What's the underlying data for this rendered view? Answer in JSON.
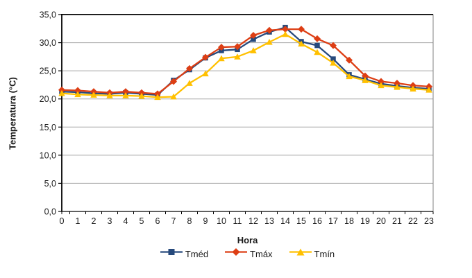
{
  "chart_data": {
    "type": "line",
    "title": "",
    "xlabel": "Hora",
    "ylabel": "Temperatura (°C)",
    "categories": [
      "0",
      "1",
      "2",
      "3",
      "4",
      "5",
      "6",
      "7",
      "8",
      "9",
      "10",
      "11",
      "12",
      "13",
      "14",
      "15",
      "16",
      "17",
      "18",
      "19",
      "20",
      "21",
      "22",
      "23"
    ],
    "ylim": [
      0,
      35
    ],
    "ytick_step": 5,
    "ytick_labels": [
      "0,0",
      "5,0",
      "10,0",
      "15,0",
      "20,0",
      "25,0",
      "30,0",
      "35,0"
    ],
    "grid": true,
    "legend_position": "bottom",
    "series": [
      {
        "name": "Tméd",
        "marker": "square",
        "color": "#26497C",
        "values": [
          21.3,
          21.2,
          21.0,
          20.9,
          21.1,
          20.9,
          20.7,
          23.3,
          25.2,
          27.3,
          28.6,
          28.8,
          30.6,
          31.9,
          32.7,
          30.2,
          29.5,
          27.1,
          24.3,
          23.5,
          22.7,
          22.3,
          22.0,
          21.8
        ]
      },
      {
        "name": "Tmáx",
        "marker": "diamond",
        "color": "#DD3E14",
        "values": [
          21.6,
          21.5,
          21.3,
          21.1,
          21.3,
          21.1,
          20.9,
          23.1,
          25.4,
          27.4,
          29.2,
          29.3,
          31.3,
          32.2,
          32.4,
          32.4,
          30.7,
          29.5,
          26.9,
          24.1,
          23.1,
          22.8,
          22.4,
          22.2
        ]
      },
      {
        "name": "Tmín",
        "marker": "triangle",
        "color": "#FFC000",
        "values": [
          21.0,
          20.8,
          20.7,
          20.6,
          20.6,
          20.5,
          20.3,
          20.4,
          22.8,
          24.5,
          27.2,
          27.5,
          28.6,
          30.1,
          31.5,
          29.8,
          28.3,
          26.4,
          24.0,
          23.3,
          22.4,
          22.1,
          21.8,
          21.6
        ]
      }
    ],
    "colors": {
      "grid": "#A6A6A6",
      "border": "#808080",
      "axis": "#000000",
      "text": "#1A1A1A"
    }
  }
}
